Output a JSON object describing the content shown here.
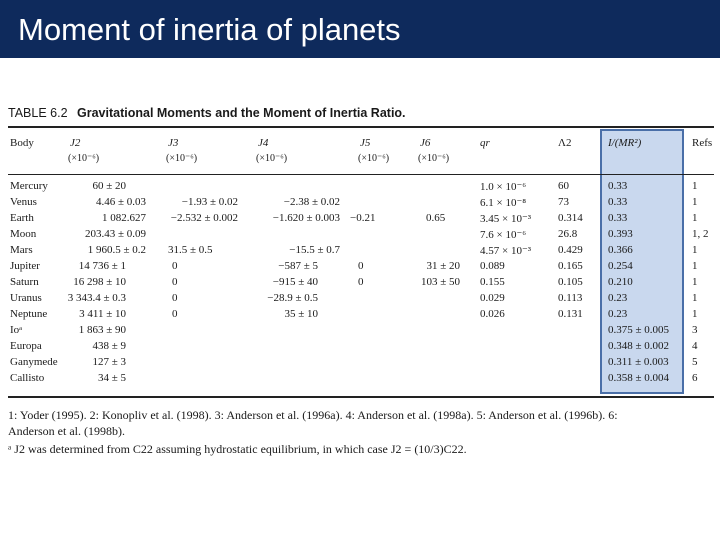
{
  "slide": {
    "title": "Moment of inertia of planets"
  },
  "table": {
    "label": "TABLE 6.2",
    "caption": "Gravitational Moments and the Moment of Inertia Ratio.",
    "headers": {
      "body": "Body",
      "j2": "J2",
      "j2_unit": "(×10⁻⁶)",
      "j3": "J3",
      "j3_unit": "(×10⁻⁶)",
      "j4": "J4",
      "j4_unit": "(×10⁻⁶)",
      "j5": "J5",
      "j5_unit": "(×10⁻⁶)",
      "j6": "J6",
      "j6_unit": "(×10⁻⁶)",
      "qr": "qr",
      "lambda2": "Λ2",
      "inertia": "I/(MR²)",
      "refs": "Refs"
    },
    "rows": [
      {
        "body": "Mercury",
        "j2": "60 ± 20",
        "j3": "",
        "j4": "",
        "j5": "",
        "j6": "",
        "qr": "1.0 × 10⁻⁶",
        "l2": "60",
        "i": "0.33",
        "ref": "1"
      },
      {
        "body": "Venus",
        "j2": "4.46 ± 0.03",
        "j3": "−1.93 ± 0.02",
        "j4": "−2.38 ± 0.02",
        "j5": "",
        "j6": "",
        "qr": "6.1 × 10⁻⁸",
        "l2": "73",
        "i": "0.33",
        "ref": "1"
      },
      {
        "body": "Earth",
        "j2": "1 082.627",
        "j3": "−2.532 ± 0.002",
        "j4": "−1.620 ± 0.003",
        "j5": "−0.21",
        "j6": "0.65",
        "qr": "3.45 × 10⁻³",
        "l2": "0.314",
        "i": "0.33",
        "ref": "1"
      },
      {
        "body": "Moon",
        "j2": "203.43 ± 0.09",
        "j3": "",
        "j4": "",
        "j5": "",
        "j6": "",
        "qr": "7.6 × 10⁻⁶",
        "l2": "26.8",
        "i": "0.393",
        "ref": "1, 2"
      },
      {
        "body": "Mars",
        "j2": "1 960.5 ± 0.2",
        "j3": "31.5 ± 0.5",
        "j4": "−15.5 ± 0.7",
        "j5": "",
        "j6": "",
        "qr": "4.57 × 10⁻³",
        "l2": "0.429",
        "i": "0.366",
        "ref": "1"
      },
      {
        "body": "Jupiter",
        "j2": "14 736 ± 1",
        "j3": "0",
        "j4": "−587 ± 5",
        "j5": "0",
        "j6": "31 ± 20",
        "qr": "0.089",
        "l2": "0.165",
        "i": "0.254",
        "ref": "1"
      },
      {
        "body": "Saturn",
        "j2": "16 298 ± 10",
        "j3": "0",
        "j4": "−915 ± 40",
        "j5": "0",
        "j6": "103 ± 50",
        "qr": "0.155",
        "l2": "0.105",
        "i": "0.210",
        "ref": "1"
      },
      {
        "body": "Uranus",
        "j2": "3 343.4 ± 0.3",
        "j3": "0",
        "j4": "−28.9 ± 0.5",
        "j5": "",
        "j6": "",
        "qr": "0.029",
        "l2": "0.113",
        "i": "0.23",
        "ref": "1"
      },
      {
        "body": "Neptune",
        "j2": "3 411 ± 10",
        "j3": "0",
        "j4": "35 ± 10",
        "j5": "",
        "j6": "",
        "qr": "0.026",
        "l2": "0.131",
        "i": "0.23",
        "ref": "1"
      },
      {
        "body": "Ioᵃ",
        "j2": "1 863 ± 90",
        "j3": "",
        "j4": "",
        "j5": "",
        "j6": "",
        "qr": "",
        "l2": "",
        "i": "0.375 ± 0.005",
        "ref": "3"
      },
      {
        "body": "Europa",
        "j2": "438 ± 9",
        "j3": "",
        "j4": "",
        "j5": "",
        "j6": "",
        "qr": "",
        "l2": "",
        "i": "0.348 ± 0.002",
        "ref": "4"
      },
      {
        "body": "Ganymede",
        "j2": "127 ± 3",
        "j3": "",
        "j4": "",
        "j5": "",
        "j6": "",
        "qr": "",
        "l2": "",
        "i": "0.311 ± 0.003",
        "ref": "5"
      },
      {
        "body": "Callisto",
        "j2": "34 ± 5",
        "j3": "",
        "j4": "",
        "j5": "",
        "j6": "",
        "qr": "",
        "l2": "",
        "i": "0.358 ± 0.004",
        "ref": "6"
      }
    ]
  },
  "footnotes": {
    "line1": "1: Yoder (1995). 2: Konopliv et al. (1998). 3: Anderson et al. (1996a). 4: Anderson et al. (1998a). 5: Anderson et al. (1996b). 6:",
    "line2": "Anderson et al. (1998b).",
    "line3": "ᵃ J2 was determined from C22 assuming hydrostatic equilibrium, in which case J2 = (10/3)C22."
  }
}
